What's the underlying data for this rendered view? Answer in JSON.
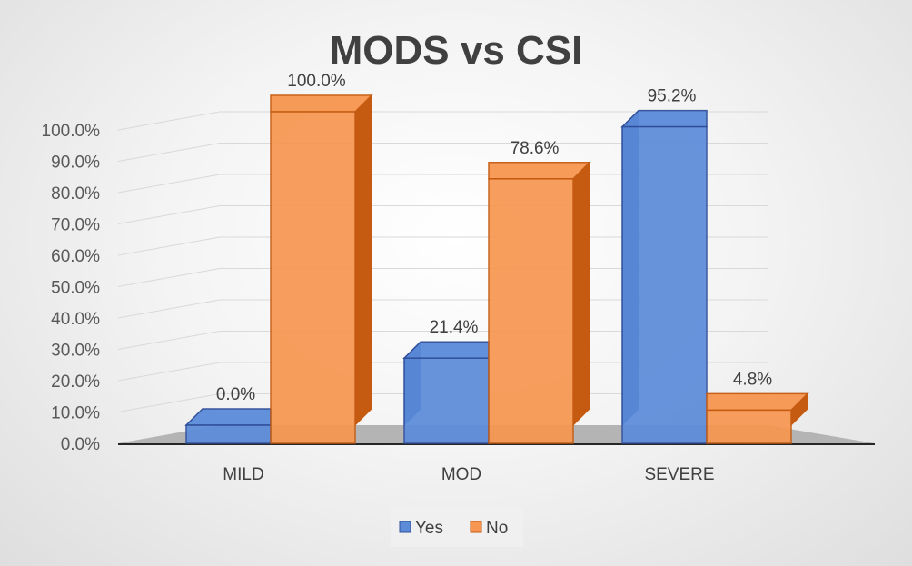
{
  "chart_data": {
    "type": "bar",
    "variant": "3d-clustered-column",
    "title": "MODS vs CSI",
    "categories": [
      "MILD",
      "MOD",
      "SEVERE"
    ],
    "series": [
      {
        "name": "Yes",
        "values": [
          0.0,
          21.4,
          95.2
        ],
        "labels": [
          "0.0%",
          "21.4%",
          "95.2%"
        ],
        "color": "#5b8bd9",
        "edge": "#2f4f9a"
      },
      {
        "name": "No",
        "values": [
          100.0,
          78.6,
          4.8
        ],
        "labels": [
          "100.0%",
          "78.6%",
          "4.8%"
        ],
        "color": "#f79650",
        "edge": "#c55a11"
      }
    ],
    "y_ticks": [
      "0.0%",
      "10.0%",
      "20.0%",
      "30.0%",
      "40.0%",
      "50.0%",
      "60.0%",
      "70.0%",
      "80.0%",
      "90.0%",
      "100.0%"
    ],
    "ylim": [
      0,
      100
    ],
    "xlabel": "",
    "ylabel": "",
    "grid": true,
    "legend_position": "bottom"
  }
}
